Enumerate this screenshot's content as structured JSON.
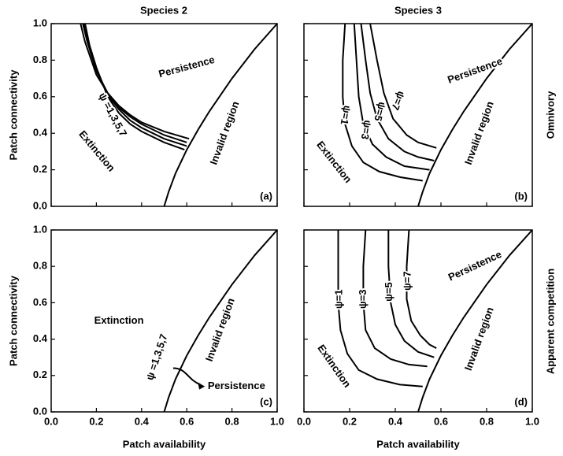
{
  "column_titles": [
    "Species 2",
    "Species 3"
  ],
  "row_titles": [
    "Omnivory",
    "Apparent competition"
  ],
  "chart_data": [
    {
      "type": "line",
      "panel_label": "(a)",
      "ylabel": "Patch connectivity",
      "xlim": [
        0,
        1
      ],
      "ylim": [
        0,
        1
      ],
      "xticks": [
        0,
        0.2,
        0.4,
        0.6,
        0.8,
        1
      ],
      "yticks": [
        {
          "value": 0,
          "label": "0.0"
        },
        0.2,
        0.4,
        0.6,
        0.8,
        {
          "value": 1,
          "label": "1.0"
        }
      ],
      "annotations": [
        "Persistence",
        "Invalid region",
        "Extinction",
        "ψ =1,3,5,7"
      ],
      "series": [
        {
          "color": "#000000",
          "x": [
            0.5,
            0.52,
            0.55,
            0.6,
            0.65,
            0.7,
            0.8,
            0.9,
            1.0
          ],
          "values": [
            0,
            0.08,
            0.18,
            0.31,
            0.42,
            0.52,
            0.7,
            0.86,
            1.0
          ]
        },
        {
          "color": "#000000",
          "x": [
            0.13,
            0.15,
            0.2,
            0.25,
            0.3,
            0.35,
            0.4,
            0.5,
            0.61
          ],
          "values": [
            1.0,
            0.9,
            0.72,
            0.62,
            0.55,
            0.5,
            0.46,
            0.41,
            0.37
          ]
        },
        {
          "color": "#000000",
          "x": [
            0.14,
            0.16,
            0.2,
            0.25,
            0.3,
            0.35,
            0.4,
            0.5,
            0.6
          ],
          "values": [
            1.0,
            0.9,
            0.74,
            0.62,
            0.54,
            0.49,
            0.45,
            0.39,
            0.35
          ]
        },
        {
          "color": "#000000",
          "x": [
            0.145,
            0.165,
            0.2,
            0.25,
            0.3,
            0.35,
            0.4,
            0.5,
            0.6
          ],
          "values": [
            1.0,
            0.89,
            0.75,
            0.61,
            0.53,
            0.47,
            0.43,
            0.37,
            0.33
          ]
        },
        {
          "color": "#000000",
          "x": [
            0.15,
            0.17,
            0.2,
            0.25,
            0.3,
            0.35,
            0.4,
            0.5,
            0.59
          ],
          "values": [
            1.0,
            0.88,
            0.76,
            0.6,
            0.51,
            0.45,
            0.41,
            0.35,
            0.31
          ]
        }
      ]
    },
    {
      "type": "line",
      "panel_label": "(b)",
      "xlim": [
        0,
        1
      ],
      "ylim": [
        0,
        1
      ],
      "xticks": [
        0,
        0.2,
        0.4,
        0.6,
        0.8,
        1
      ],
      "yticks": [
        0,
        0.2,
        0.4,
        0.6,
        0.8,
        1
      ],
      "annotations": [
        "Persistence",
        "Invalid region",
        "Extinction"
      ],
      "series": [
        {
          "color": "#000000",
          "x": [
            0.5,
            0.52,
            0.55,
            0.6,
            0.65,
            0.7,
            0.8,
            0.9,
            1.0
          ],
          "values": [
            0,
            0.08,
            0.18,
            0.31,
            0.42,
            0.52,
            0.7,
            0.86,
            1.0
          ]
        },
        {
          "name": "ψ=1",
          "color": "#000000",
          "x": [
            0.18,
            0.17,
            0.17,
            0.18,
            0.21,
            0.26,
            0.33,
            0.42,
            0.52
          ],
          "values": [
            1.0,
            0.8,
            0.6,
            0.45,
            0.33,
            0.24,
            0.19,
            0.16,
            0.14
          ]
        },
        {
          "name": "ψ=3",
          "color": "#000000",
          "x": [
            0.22,
            0.23,
            0.24,
            0.26,
            0.3,
            0.36,
            0.44,
            0.55
          ],
          "values": [
            1.0,
            0.8,
            0.6,
            0.45,
            0.34,
            0.27,
            0.22,
            0.2
          ]
        },
        {
          "name": "ψ=5",
          "color": "#000000",
          "x": [
            0.25,
            0.27,
            0.29,
            0.32,
            0.37,
            0.44,
            0.5,
            0.57
          ],
          "values": [
            1.0,
            0.8,
            0.62,
            0.48,
            0.37,
            0.3,
            0.27,
            0.25
          ]
        },
        {
          "name": "ψ=7",
          "color": "#000000",
          "x": [
            0.29,
            0.32,
            0.35,
            0.39,
            0.45,
            0.5,
            0.58
          ],
          "values": [
            1.0,
            0.8,
            0.62,
            0.48,
            0.39,
            0.35,
            0.32
          ]
        }
      ]
    },
    {
      "type": "line",
      "panel_label": "(c)",
      "ylabel": "Patch connectivity",
      "xlabel": "Patch availability",
      "xlim": [
        0,
        1
      ],
      "ylim": [
        0,
        1
      ],
      "xticks": [
        {
          "value": 0,
          "label": "0.0"
        },
        0.2,
        0.4,
        0.6,
        0.8,
        {
          "value": 1,
          "label": "1.0"
        }
      ],
      "yticks": [
        {
          "value": 0,
          "label": "0.0"
        },
        0.2,
        0.4,
        0.6,
        0.8,
        {
          "value": 1,
          "label": "1.0"
        }
      ],
      "annotations": [
        "Extinction",
        "Invalid region",
        "ψ =1,3,5,7",
        "Persistence"
      ],
      "series": [
        {
          "color": "#000000",
          "x": [
            0.5,
            0.52,
            0.55,
            0.6,
            0.65,
            0.7,
            0.8,
            0.9,
            1.0
          ],
          "values": [
            0,
            0.08,
            0.18,
            0.31,
            0.42,
            0.52,
            0.7,
            0.86,
            1.0
          ]
        }
      ]
    },
    {
      "type": "line",
      "panel_label": "(d)",
      "xlabel": "Patch availability",
      "xlim": [
        0,
        1
      ],
      "ylim": [
        0,
        1
      ],
      "xticks": [
        {
          "value": 0,
          "label": "0.0"
        },
        0.2,
        0.4,
        0.6,
        0.8,
        {
          "value": 1,
          "label": "1.0"
        }
      ],
      "yticks": [
        0,
        0.2,
        0.4,
        0.6,
        0.8,
        1
      ],
      "annotations": [
        "Persistence",
        "Invalid region",
        "Extinction"
      ],
      "series": [
        {
          "color": "#000000",
          "x": [
            0.5,
            0.52,
            0.55,
            0.6,
            0.65,
            0.7,
            0.8,
            0.9,
            1.0
          ],
          "values": [
            0,
            0.08,
            0.18,
            0.31,
            0.42,
            0.52,
            0.7,
            0.86,
            1.0
          ]
        },
        {
          "name": "ψ=1",
          "color": "#000000",
          "x": [
            0.15,
            0.15,
            0.15,
            0.16,
            0.19,
            0.24,
            0.32,
            0.42,
            0.52
          ],
          "values": [
            1.0,
            0.8,
            0.6,
            0.45,
            0.32,
            0.23,
            0.18,
            0.15,
            0.14
          ]
        },
        {
          "name": "ψ=3",
          "color": "#000000",
          "x": [
            0.27,
            0.26,
            0.26,
            0.27,
            0.31,
            0.38,
            0.46,
            0.54
          ],
          "values": [
            1.0,
            0.8,
            0.6,
            0.45,
            0.35,
            0.29,
            0.26,
            0.25
          ]
        },
        {
          "name": "ψ=5",
          "color": "#000000",
          "x": [
            0.37,
            0.37,
            0.38,
            0.4,
            0.44,
            0.5,
            0.57
          ],
          "values": [
            1.0,
            0.8,
            0.6,
            0.48,
            0.39,
            0.33,
            0.3
          ]
        },
        {
          "name": "ψ=7",
          "color": "#000000",
          "x": [
            0.46,
            0.45,
            0.45,
            0.47,
            0.51,
            0.55,
            0.58
          ],
          "values": [
            1.0,
            0.8,
            0.62,
            0.5,
            0.42,
            0.37,
            0.35
          ]
        }
      ]
    }
  ]
}
